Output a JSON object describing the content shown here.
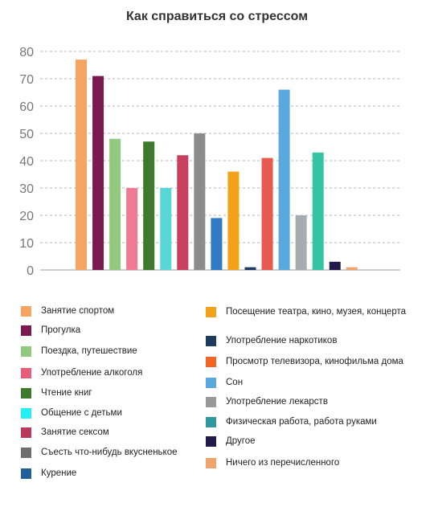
{
  "chart_data": {
    "type": "bar",
    "title": "Как справиться со стрессом",
    "ylim": [
      0,
      80
    ],
    "yticks": [
      0,
      10,
      20,
      30,
      40,
      50,
      60,
      70,
      80
    ],
    "grid": true,
    "legend_position": "bottom",
    "series": [
      {
        "name": "Занятие спортом",
        "value": 77,
        "color": "#f5a462"
      },
      {
        "name": "Прогулка",
        "value": 71,
        "color": "#7b1a4e"
      },
      {
        "name": "Поездка, путешествие",
        "value": 48,
        "color": "#93c97f"
      },
      {
        "name": "Употребление алкоголя",
        "value": 30,
        "color": "#f07a93"
      },
      {
        "name": "Чтение книг",
        "value": 47,
        "color": "#3d7a2b"
      },
      {
        "name": "Общение с детьми",
        "value": 30,
        "color": "#57d6d6"
      },
      {
        "name": "Занятие сексом",
        "value": 42,
        "color": "#c9405f"
      },
      {
        "name": "Съесть что-нибудь вкусненькое",
        "value": 50,
        "color": "#8c8c8c"
      },
      {
        "name": "Курение",
        "value": 19,
        "color": "#2f7ac2"
      },
      {
        "name": "Посещение театра, кино, музея, концерта",
        "value": 36,
        "color": "#f5a21b"
      },
      {
        "name": "Употребление наркотиков",
        "value": 1,
        "color": "#1d3a5f"
      },
      {
        "name": "Просмотр телевизора, кинофильма дома",
        "value": 41,
        "color": "#e85a4f"
      },
      {
        "name": "Сон",
        "value": 66,
        "color": "#5aa8e0"
      },
      {
        "name": "Употребление лекарств",
        "value": 20,
        "color": "#a5adb0"
      },
      {
        "name": "Физическая работа, работа руками",
        "value": 43,
        "color": "#35c4a3"
      },
      {
        "name": "Другое",
        "value": 3,
        "color": "#221a4a"
      },
      {
        "name": "Ничего из перечисленного",
        "value": 1,
        "color": "#f0a46c"
      }
    ],
    "legend": {
      "left": [
        {
          "label": "Занятие спортом",
          "color": "#f5a462"
        },
        {
          "label": "Прогулка",
          "color": "#7b1a4e"
        },
        {
          "label": "Поездка, путешествие",
          "color": "#93c97f"
        },
        {
          "label": "Употребление алкоголя",
          "color": "#e85d7a"
        },
        {
          "label": "Чтение книг",
          "color": "#3d7a2b"
        },
        {
          "label": "Общение с детьми",
          "color": "#22f0f5"
        },
        {
          "label": "Занятие сексом",
          "color": "#b83a58"
        },
        {
          "label": "Съесть что-нибудь вкусненькое",
          "color": "#6e6e6e"
        },
        {
          "label": "Курение",
          "color": "#1f5f9a"
        }
      ],
      "right": [
        {
          "label": "Посещение театра, кино, музея, концерта",
          "color": "#f5a21b"
        },
        {
          "label": "Употребление наркотиков",
          "color": "#1d3a5f"
        },
        {
          "label": "Просмотр телевизора, кинофильма дома",
          "color": "#f26522"
        },
        {
          "label": "Сон",
          "color": "#5aa8e0"
        },
        {
          "label": "Употребление лекарств",
          "color": "#999999"
        },
        {
          "label": "Физическая работа, работа руками",
          "color": "#2e9aa0"
        },
        {
          "label": "Другое",
          "color": "#221a4a"
        },
        {
          "label": "Ничего из перечисленного",
          "color": "#f0a46c"
        }
      ]
    }
  }
}
